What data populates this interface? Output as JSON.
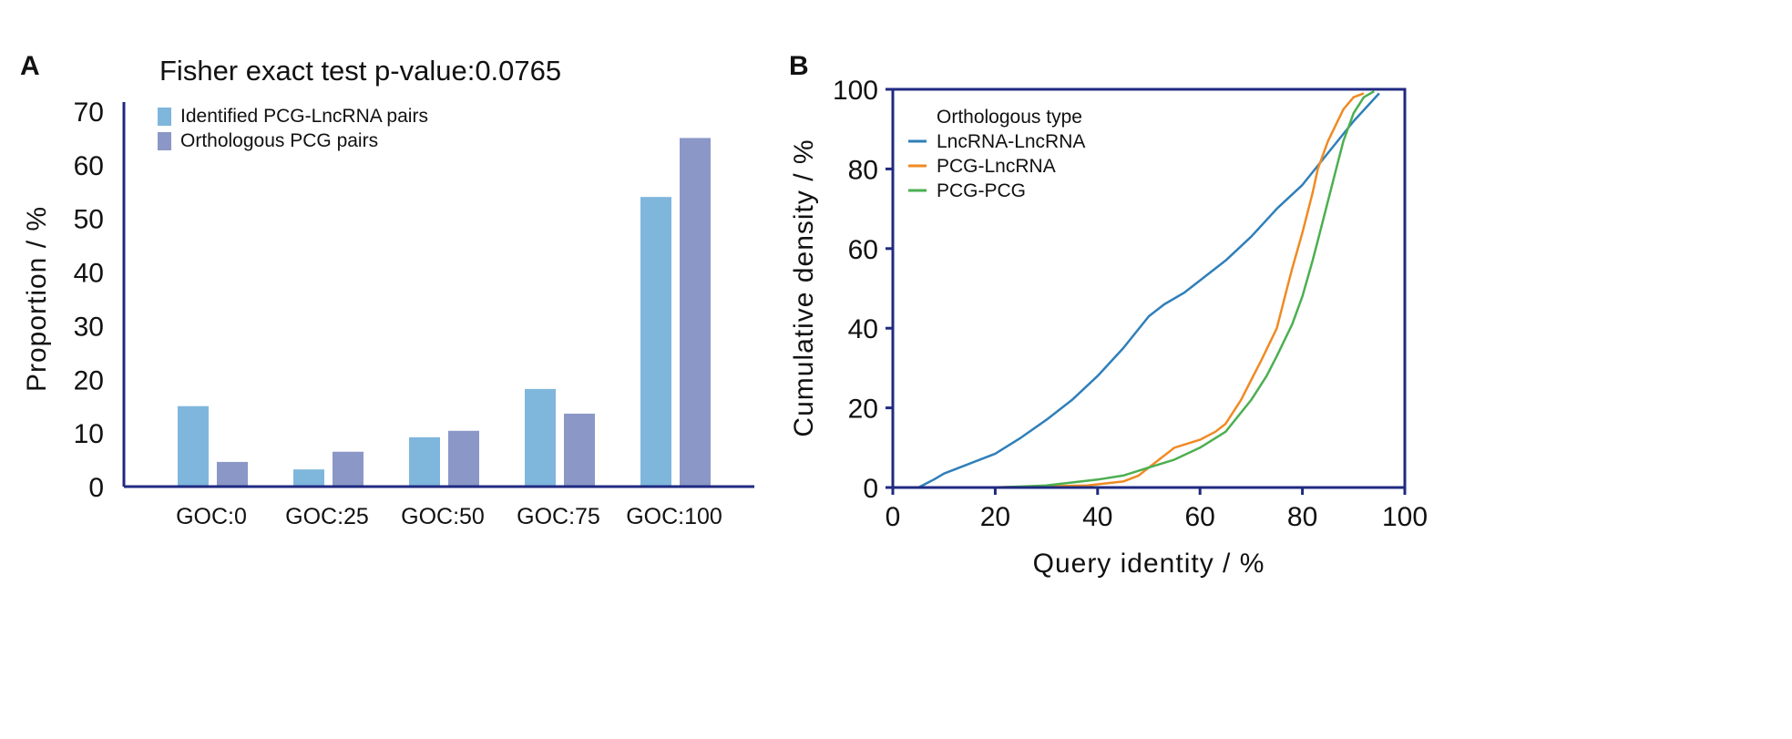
{
  "chart_data": [
    {
      "panel_label": "A",
      "type": "bar",
      "title": "Fisher exact test p-value:0.0765",
      "xlabel": "",
      "ylabel": "Proportion / %",
      "ylim": [
        0,
        70
      ],
      "yticks": [
        0,
        10,
        20,
        30,
        40,
        50,
        60,
        70
      ],
      "categories": [
        "GOC:0",
        "GOC:25",
        "GOC:50",
        "GOC:75",
        "GOC:100"
      ],
      "series": [
        {
          "name": "Identified PCG-LncRNA pairs",
          "color": "#7fb6dc",
          "values": [
            15.0,
            3.2,
            9.2,
            18.2,
            54.0
          ]
        },
        {
          "name": "Orthologous PCG pairs",
          "color": "#8b97c6",
          "values": [
            4.6,
            6.5,
            10.4,
            13.6,
            65.0
          ]
        }
      ],
      "legend_position": "top-left",
      "grid": false,
      "axis_color": "#1f2a80"
    },
    {
      "panel_label": "B",
      "type": "line",
      "xlabel": "Query identity / %",
      "ylabel": "Cumulative density / %",
      "xlim": [
        0,
        100
      ],
      "ylim": [
        0,
        100
      ],
      "xticks": [
        0,
        20,
        40,
        60,
        80,
        100
      ],
      "yticks": [
        0,
        20,
        40,
        60,
        80,
        100
      ],
      "legend_title": "Orthologous type",
      "legend_position": "top-left",
      "grid": false,
      "axis_color": "#1f2a80",
      "series": [
        {
          "name": "LncRNA-LncRNA",
          "color": "#2f7fba",
          "x": [
            5,
            8,
            10,
            15,
            20,
            25,
            30,
            35,
            40,
            45,
            50,
            53,
            57,
            60,
            65,
            70,
            75,
            80,
            85,
            90,
            95
          ],
          "y": [
            0,
            2,
            3.5,
            6,
            8.5,
            12.5,
            17,
            22,
            28,
            35,
            43,
            46,
            49,
            52,
            57,
            63,
            70,
            76,
            84,
            92,
            99
          ]
        },
        {
          "name": "PCG-LncRNA",
          "color": "#f08a24",
          "x": [
            18,
            30,
            38,
            45,
            48,
            50,
            53,
            55,
            60,
            63,
            65,
            68,
            70,
            72,
            75,
            77,
            78,
            80,
            82,
            83,
            85,
            88,
            90,
            92
          ],
          "y": [
            0,
            0.3,
            0.5,
            1.5,
            3,
            5,
            8,
            10,
            12,
            14,
            16,
            22,
            27,
            32,
            40,
            50,
            55,
            64,
            74,
            80,
            87,
            95,
            98,
            99
          ]
        },
        {
          "name": "PCG-PCG",
          "color": "#4caf50",
          "x": [
            20,
            30,
            40,
            45,
            50,
            55,
            60,
            65,
            70,
            73,
            75,
            78,
            80,
            82,
            83,
            85,
            87,
            88,
            90,
            92,
            94
          ],
          "y": [
            0,
            0.5,
            2,
            3,
            5,
            7,
            10,
            14,
            22,
            28,
            33,
            41,
            48,
            57,
            62,
            72,
            82,
            87,
            94,
            98,
            99.5
          ]
        }
      ]
    }
  ]
}
